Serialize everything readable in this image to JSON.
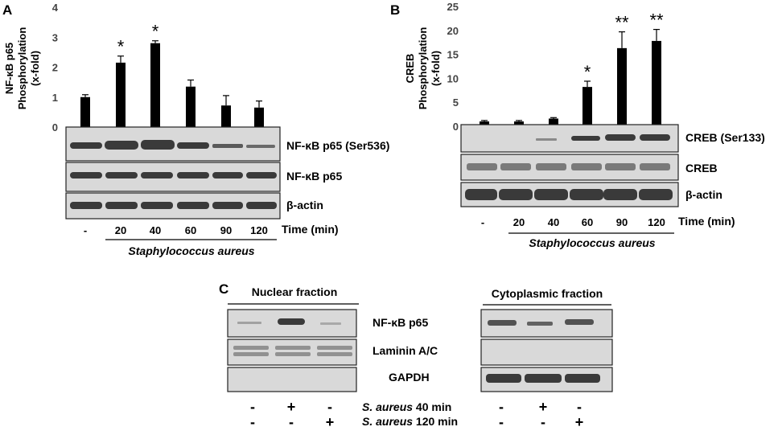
{
  "panelA": {
    "letter": "A",
    "chart_data": {
      "type": "bar",
      "ylabel": [
        "NF-κB p65",
        "Phosphorylation",
        "(x-fold)"
      ],
      "ylim": [
        0,
        4
      ],
      "yticks": [
        "0",
        "1",
        "2",
        "3",
        "4"
      ],
      "categories": [
        "-",
        "20",
        "40",
        "60",
        "90",
        "120"
      ],
      "values": [
        1.0,
        2.15,
        2.8,
        1.35,
        0.72,
        0.65
      ],
      "errors": [
        0.08,
        0.22,
        0.08,
        0.22,
        0.33,
        0.22
      ],
      "significance": [
        "",
        "*",
        "*",
        "",
        "",
        ""
      ]
    },
    "blots": [
      "NF-κB p65 (Ser536)",
      "NF-κB p65",
      "β-actin"
    ],
    "lanes": [
      "-",
      "20",
      "40",
      "60",
      "90",
      "120"
    ],
    "time_label": "Time (min)",
    "treatment": "Staphylococcus aureus"
  },
  "panelB": {
    "letter": "B",
    "chart_data": {
      "type": "bar",
      "ylabel": [
        "CREB",
        "Phosphorylation",
        "(x-fold)"
      ],
      "ylim": [
        0,
        25
      ],
      "yticks": [
        "0",
        "5",
        "10",
        "15",
        "20",
        "25"
      ],
      "categories": [
        "-",
        "20",
        "40",
        "60",
        "90",
        "120"
      ],
      "values": [
        1.0,
        1.0,
        1.6,
        8.2,
        16.3,
        17.8
      ],
      "errors": [
        0.2,
        0.2,
        0.2,
        1.2,
        3.4,
        2.4
      ],
      "significance": [
        "",
        "",
        "",
        "*",
        "**",
        "**"
      ]
    },
    "blots": [
      "CREB (Ser133)",
      "CREB",
      "β-actin"
    ],
    "lanes": [
      "-",
      "20",
      "40",
      "60",
      "90",
      "120"
    ],
    "time_label": "Time (min)",
    "treatment": "Staphylococcus aureus"
  },
  "panelC": {
    "letter": "C",
    "nuclear_title": "Nuclear fraction",
    "cytoplasmic_title": "Cytoplasmic fraction",
    "blots": [
      "NF-κB p65",
      "Laminin A/C",
      "GAPDH"
    ],
    "row1_label_italic": "S. aureus",
    "row1_label_rest": " 40 min",
    "row2_label_italic": "S. aureus",
    "row2_label_rest": " 120 min",
    "row1_signs": [
      "-",
      "+",
      "-"
    ],
    "row2_signs": [
      "-",
      "-",
      "+"
    ]
  }
}
